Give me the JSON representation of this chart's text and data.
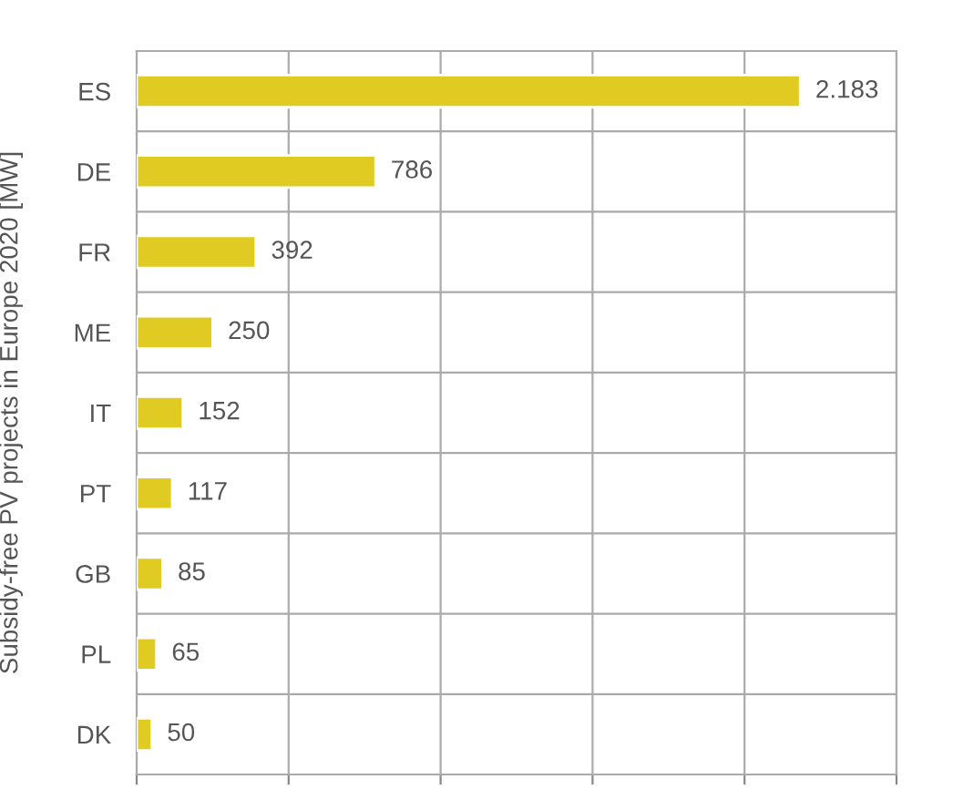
{
  "chart_data": {
    "type": "bar",
    "orientation": "horizontal",
    "ylabel": "Subsidy-free PV projects in Europe 2020 [MW]",
    "categories": [
      "ES",
      "DE",
      "FR",
      "ME",
      "IT",
      "PT",
      "GB",
      "PL",
      "DK"
    ],
    "values": [
      2183,
      786,
      392,
      250,
      152,
      117,
      85,
      65,
      50
    ],
    "value_labels": [
      "2.183",
      "786",
      "392",
      "250",
      "152",
      "117",
      "85",
      "65",
      "50"
    ],
    "color": "#e0cb22",
    "xlim": [
      0,
      2500
    ],
    "xticks": [
      {
        "value": 0,
        "label": null
      },
      {
        "value": 500,
        "label": null
      },
      {
        "value": 1000,
        "label": null
      },
      {
        "value": 1500,
        "label": null
      },
      {
        "value": 2000,
        "label": null
      },
      {
        "value": 2500,
        "label": null
      }
    ],
    "tick_labels": "y",
    "grid": true
  }
}
